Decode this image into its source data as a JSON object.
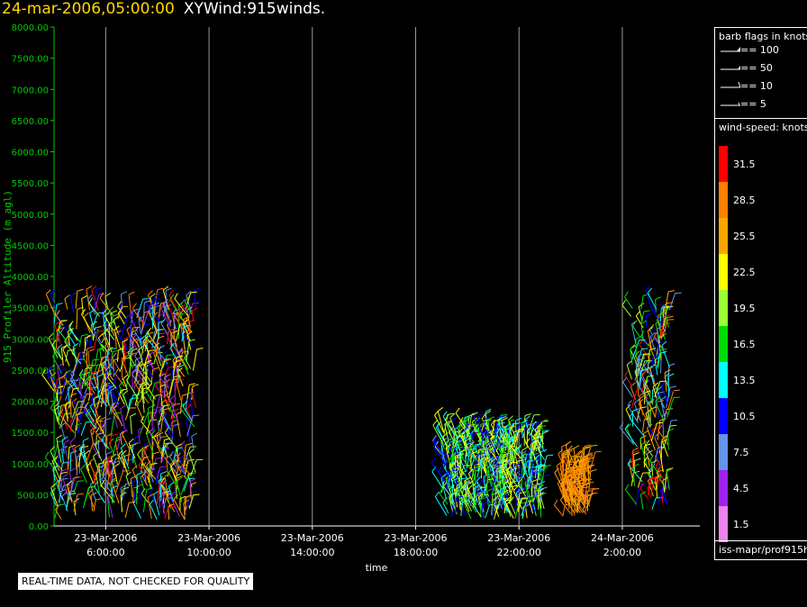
{
  "header": {
    "timestamp": "24-mar-2006,05:00:00",
    "product": "XYWind:915winds."
  },
  "barb_legend": {
    "title": "barb flags in knots",
    "items": [
      {
        "label": "== 100"
      },
      {
        "label": "== 50"
      },
      {
        "label": "== 10"
      },
      {
        "label": "== 5"
      }
    ]
  },
  "speed_legend": {
    "title": "wind-speed: knots",
    "bins": [
      {
        "label": "31.5",
        "color": "#ff0000"
      },
      {
        "label": "28.5",
        "color": "#ff7f00"
      },
      {
        "label": "25.5",
        "color": "#ffa500"
      },
      {
        "label": "22.5",
        "color": "#ffff00"
      },
      {
        "label": "19.5",
        "color": "#9aff32"
      },
      {
        "label": "16.5",
        "color": "#00dd00"
      },
      {
        "label": "13.5",
        "color": "#00ffff"
      },
      {
        "label": "10.5",
        "color": "#0000ff"
      },
      {
        "label": "7.5",
        "color": "#6495ed"
      },
      {
        "label": "4.5",
        "color": "#a020f0"
      },
      {
        "label": "1.5",
        "color": "#ee82ee"
      }
    ]
  },
  "quality_note": "REAL-TIME DATA, NOT CHECKED FOR QUALITY",
  "source_label": "iss-mapr/prof915h",
  "chart_data": {
    "type": "scatter",
    "xlabel": "time",
    "ylabel": "915 Profiler Altitude (m agl)",
    "ylim": [
      0,
      8000
    ],
    "xlim": [
      "2006-03-23T04:00",
      "2006-03-24T05:00"
    ],
    "yticks": [
      "0.00",
      "500.00",
      "1000.00",
      "1500.00",
      "2000.00",
      "2500.00",
      "3000.00",
      "3500.00",
      "4000.00",
      "4500.00",
      "5000.00",
      "5500.00",
      "6000.00",
      "6500.00",
      "7000.00",
      "7500.00",
      "8000.00"
    ],
    "xticks": [
      {
        "t": "2006-03-23T06:00",
        "date": "23-Mar-2006",
        "time": "6:00:00"
      },
      {
        "t": "2006-03-23T10:00",
        "date": "23-Mar-2006",
        "time": "10:00:00"
      },
      {
        "t": "2006-03-23T14:00",
        "date": "23-Mar-2006",
        "time": "14:00:00"
      },
      {
        "t": "2006-03-23T18:00",
        "date": "23-Mar-2006",
        "time": "18:00:00"
      },
      {
        "t": "2006-03-23T22:00",
        "date": "23-Mar-2006",
        "time": "22:00:00"
      },
      {
        "t": "2006-03-24T02:00",
        "date": "24-Mar-2006",
        "time": "2:00:00"
      }
    ],
    "grid": "vertical-at-ticks",
    "clusters": [
      {
        "t_start": "2006-03-23T04:00",
        "t_end": "2006-03-23T09:30",
        "alt_min": 100,
        "alt_max": 3500,
        "speed_range": [
          4,
          32
        ]
      },
      {
        "t_start": "2006-03-23T19:00",
        "t_end": "2006-03-23T23:00",
        "alt_min": 100,
        "alt_max": 1500,
        "speed_range": [
          8,
          24
        ]
      },
      {
        "t_start": "2006-03-23T23:40",
        "t_end": "2006-03-24T00:45",
        "alt_min": 150,
        "alt_max": 1000,
        "speed_range": [
          24,
          30
        ]
      },
      {
        "t_start": "2006-03-24T02:20",
        "t_end": "2006-03-24T03:50",
        "alt_min": 250,
        "alt_max": 3500,
        "speed_range": [
          6,
          32
        ]
      }
    ]
  }
}
